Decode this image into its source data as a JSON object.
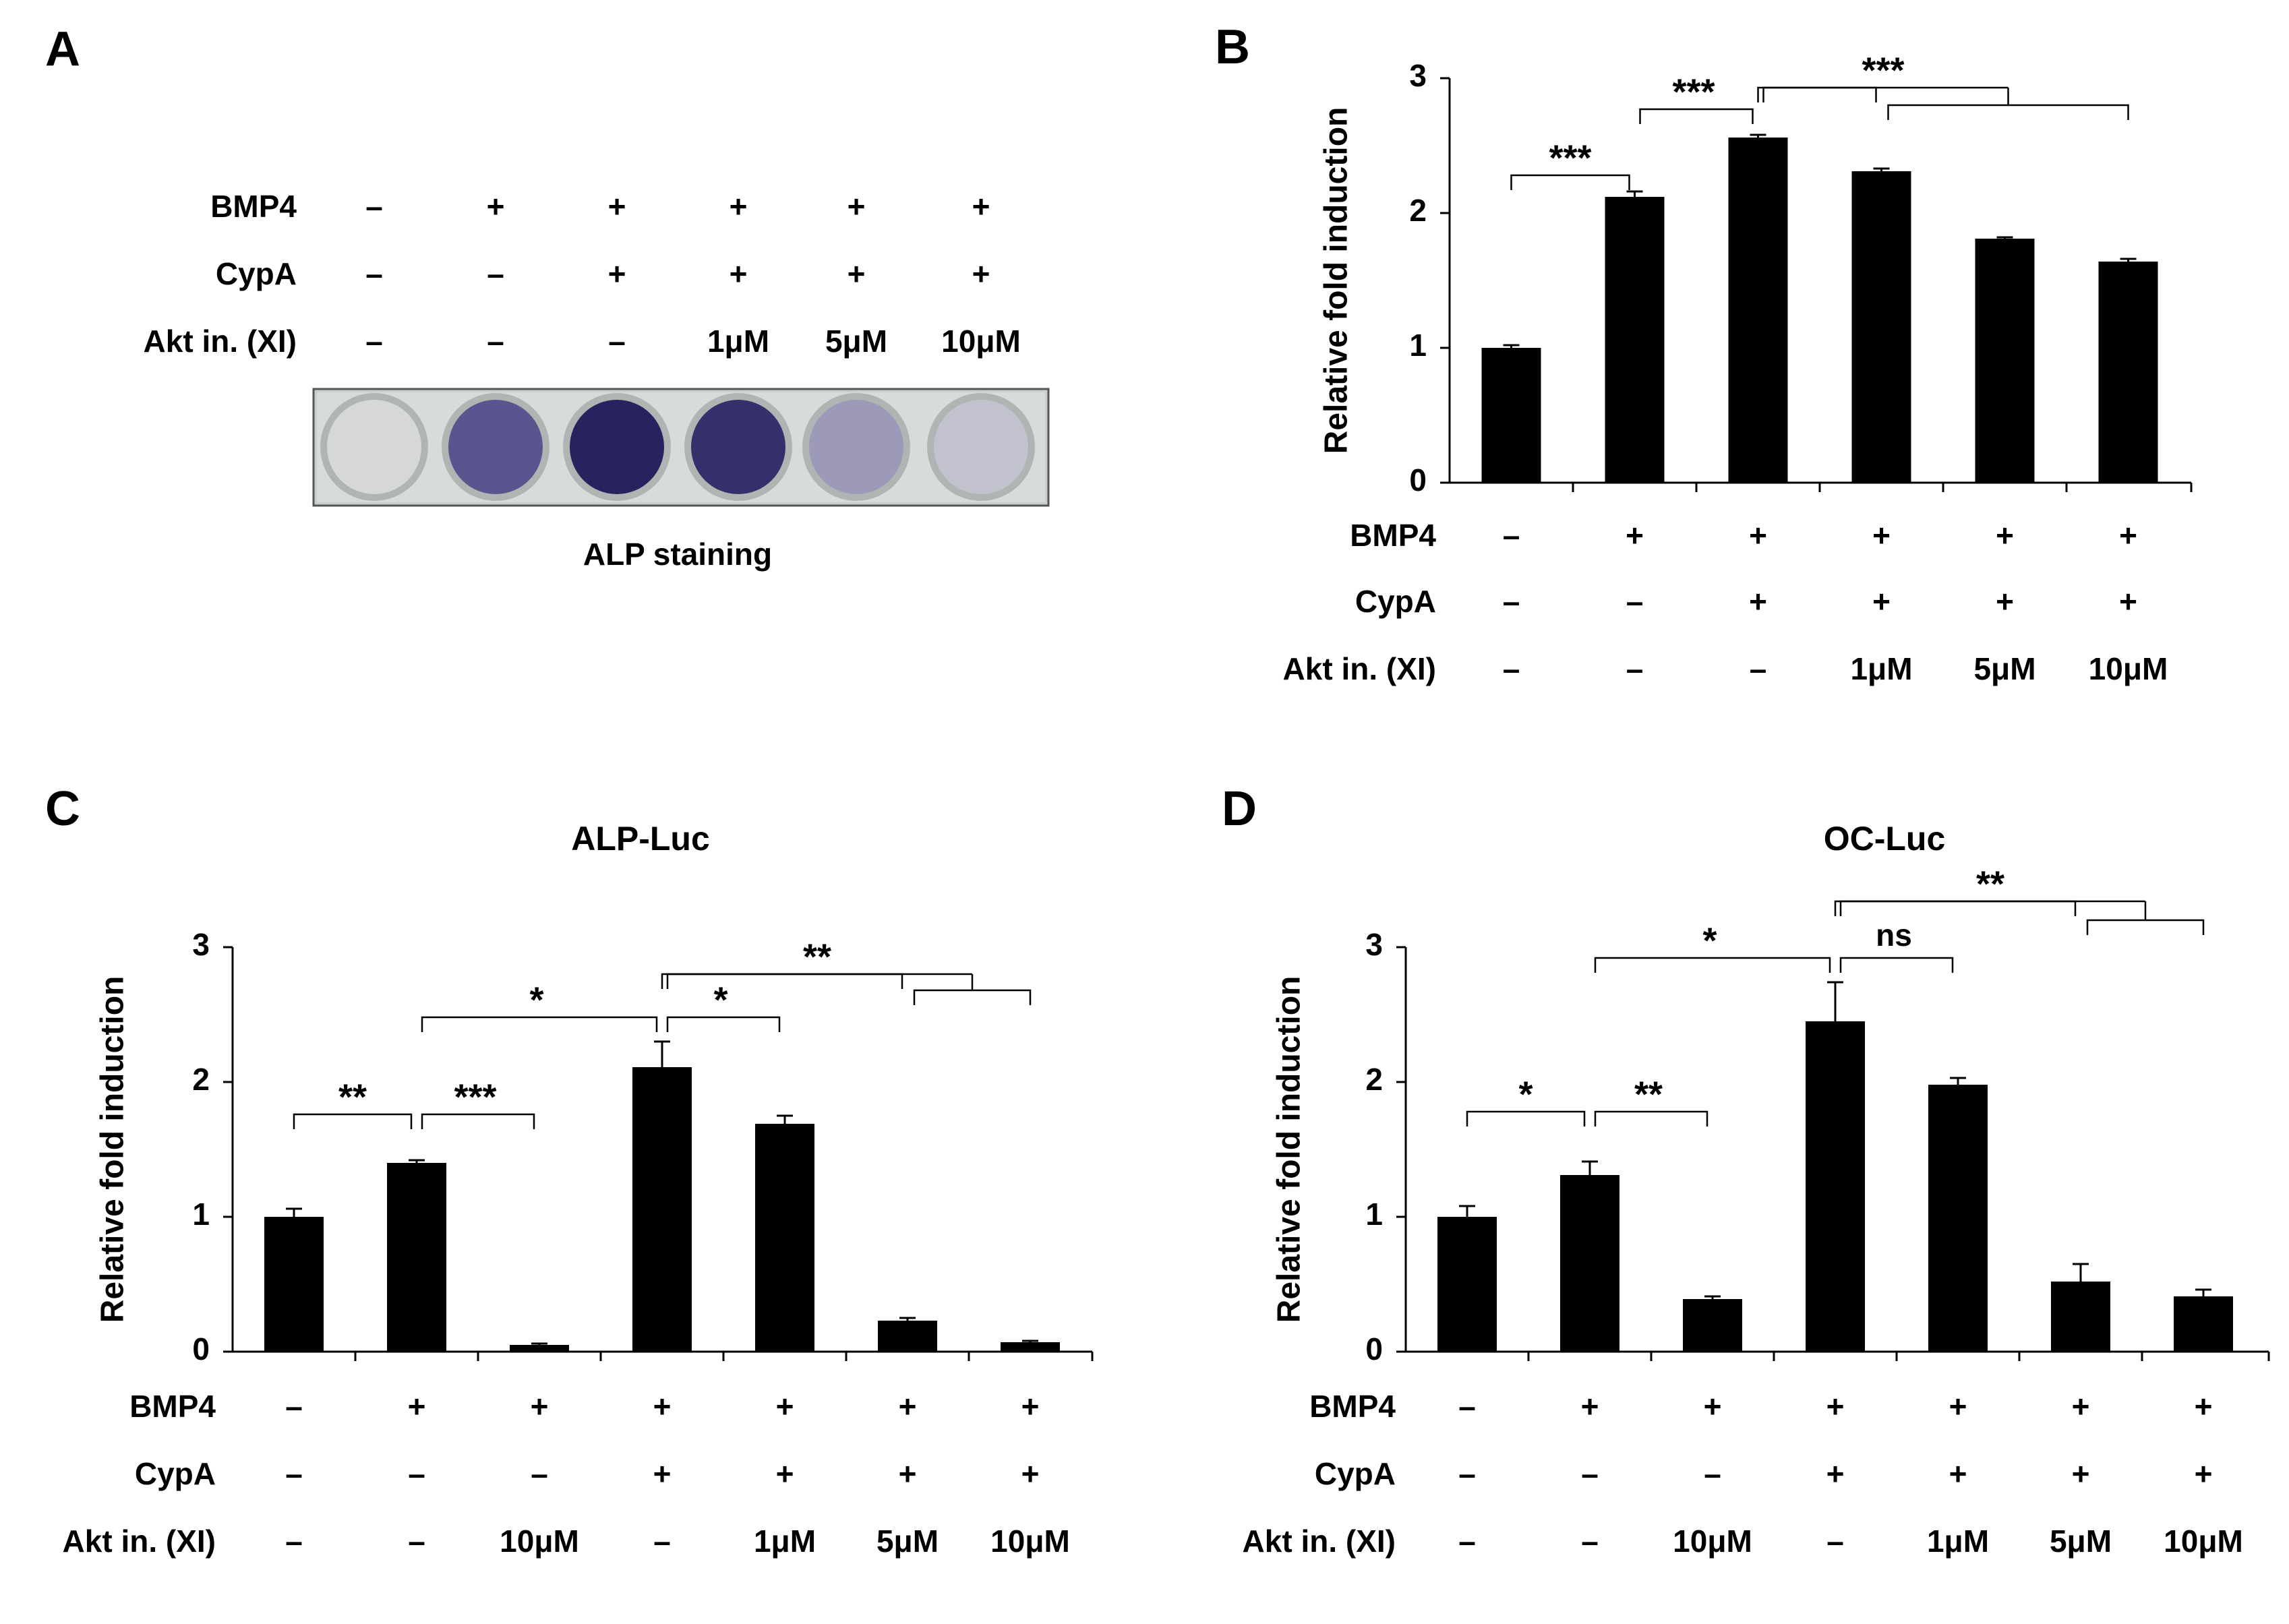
{
  "panels": {
    "A": {
      "letter": "A",
      "rows": [
        {
          "label": "BMP4",
          "values": [
            "–",
            "+",
            "+",
            "+",
            "+",
            "+"
          ]
        },
        {
          "label": "CypA",
          "values": [
            "–",
            "–",
            "+",
            "+",
            "+",
            "+"
          ]
        },
        {
          "label": "Akt in. (XI)",
          "values": [
            "–",
            "–",
            "–",
            "1μM",
            "5μM",
            "10μM"
          ]
        }
      ],
      "wells": [
        {
          "stain": "none",
          "color": "#d5d8d6"
        },
        {
          "stain": "moderate",
          "color": "#5a558f"
        },
        {
          "stain": "strong",
          "color": "#26235e"
        },
        {
          "stain": "strong",
          "color": "#33306c"
        },
        {
          "stain": "weak",
          "color": "#9c9ab8"
        },
        {
          "stain": "faint",
          "color": "#c2c2cf"
        }
      ],
      "caption": "ALP staining"
    }
  },
  "chart_data": [
    {
      "panel": "B",
      "type": "bar",
      "title": "",
      "ylabel": "Relative fold induction",
      "xlabel": "",
      "ylim": [
        0,
        3
      ],
      "yticks": [
        "0",
        "1",
        "2",
        "3"
      ],
      "values": [
        1.0,
        2.12,
        2.56,
        2.31,
        1.81,
        1.64
      ],
      "errors": [
        0.02,
        0.04,
        0.02,
        0.02,
        0.01,
        0.02
      ],
      "rows": [
        {
          "label": "BMP4",
          "values": [
            "–",
            "+",
            "+",
            "+",
            "+",
            "+"
          ]
        },
        {
          "label": "CypA",
          "values": [
            "–",
            "–",
            "+",
            "+",
            "+",
            "+"
          ]
        },
        {
          "label": "Akt in. (XI)",
          "values": [
            "–",
            "–",
            "–",
            "1μM",
            "5μM",
            "10μM"
          ]
        }
      ],
      "significance": [
        {
          "from": 0,
          "to": 1,
          "label": "***",
          "level": 2.28
        },
        {
          "from": 1,
          "to": 2,
          "label": "***",
          "level": 2.77
        },
        {
          "from": 2,
          "to": 3,
          "to2": 5,
          "label": "***",
          "level": 2.93,
          "level2": 2.8
        }
      ]
    },
    {
      "panel": "C",
      "type": "bar",
      "title": "ALP-Luc",
      "ylabel": "Relative fold induction",
      "xlabel": "",
      "ylim": [
        0,
        3
      ],
      "yticks": [
        "0",
        "1",
        "2",
        "3"
      ],
      "values": [
        1.0,
        1.4,
        0.05,
        2.11,
        1.69,
        0.23,
        0.07
      ],
      "errors": [
        0.06,
        0.02,
        0.01,
        0.19,
        0.06,
        0.02,
        0.01
      ],
      "rows": [
        {
          "label": "BMP4",
          "values": [
            "–",
            "+",
            "+",
            "+",
            "+",
            "+",
            "+"
          ]
        },
        {
          "label": "CypA",
          "values": [
            "–",
            "–",
            "–",
            "+",
            "+",
            "+",
            "+"
          ]
        },
        {
          "label": "Akt in. (XI)",
          "values": [
            "–",
            "–",
            "10μM",
            "–",
            "1μM",
            "5μM",
            "10μM"
          ]
        }
      ],
      "significance": [
        {
          "from": 0,
          "to": 1,
          "label": "**",
          "level": 1.76
        },
        {
          "from": 1,
          "to": 2,
          "label": "***",
          "level": 1.76
        },
        {
          "from": 1,
          "to": 3,
          "label": "*",
          "level": 2.48
        },
        {
          "from": 3,
          "to": 4,
          "label": "*",
          "level": 2.48
        },
        {
          "from": 3,
          "to": 5,
          "to2": 6,
          "label": "**",
          "level": 2.8,
          "level2": 2.68
        }
      ]
    },
    {
      "panel": "D",
      "type": "bar",
      "title": "OC-Luc",
      "ylabel": "Relative fold induction",
      "xlabel": "",
      "ylim": [
        0,
        3
      ],
      "yticks": [
        "0",
        "1",
        "2",
        "3"
      ],
      "values": [
        1.0,
        1.31,
        0.39,
        2.45,
        1.98,
        0.52,
        0.41
      ],
      "errors": [
        0.08,
        0.1,
        0.02,
        0.29,
        0.05,
        0.13,
        0.05
      ],
      "rows": [
        {
          "label": "BMP4",
          "values": [
            "–",
            "+",
            "+",
            "+",
            "+",
            "+",
            "+"
          ]
        },
        {
          "label": "CypA",
          "values": [
            "–",
            "–",
            "–",
            "+",
            "+",
            "+",
            "+"
          ]
        },
        {
          "label": "Akt in. (XI)",
          "values": [
            "–",
            "–",
            "10μM",
            "–",
            "1μM",
            "5μM",
            "10μM"
          ]
        }
      ],
      "significance": [
        {
          "from": 0,
          "to": 1,
          "label": "*",
          "level": 1.78
        },
        {
          "from": 1,
          "to": 2,
          "label": "**",
          "level": 1.78
        },
        {
          "from": 1,
          "to": 3,
          "label": "*",
          "level": 2.92
        },
        {
          "from": 3,
          "to": 4,
          "label": "ns",
          "level": 2.92
        },
        {
          "from": 3,
          "to": 5,
          "to2": 6,
          "label": "**",
          "level": 3.34,
          "level2": 3.2
        }
      ]
    }
  ]
}
